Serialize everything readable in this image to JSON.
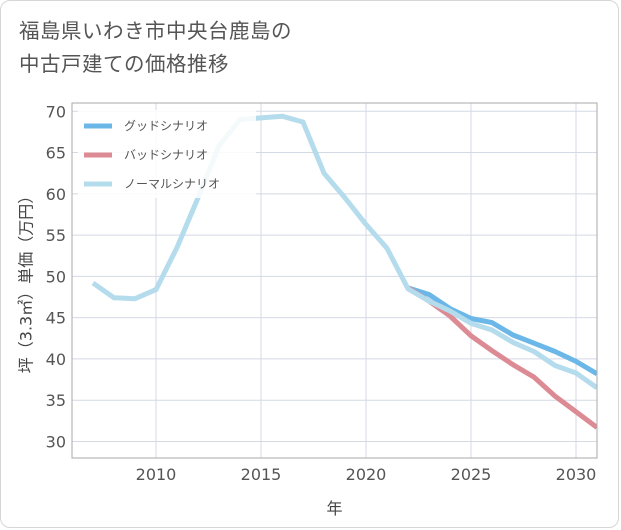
{
  "title": "福島県いわき市中央台鹿島の\n中古戸建ての価格推移",
  "colors": {
    "good": "#6bb8e8",
    "bad": "#dc8a93",
    "normal": "#b5dcec",
    "grid": "#d4d9e4",
    "plot_border": "#aaaaaa"
  },
  "chart_data": {
    "type": "line",
    "title": "福島県いわき市中央台鹿島の\n中古戸建ての価格推移",
    "xlabel": "年",
    "ylabel": "坪（3.3㎡）単価（万円）",
    "xlim": [
      2006,
      2031
    ],
    "ylim": [
      28,
      71
    ],
    "x_ticks": [
      2010,
      2015,
      2020,
      2025,
      2030
    ],
    "y_ticks": [
      30,
      35,
      40,
      45,
      50,
      55,
      60,
      65,
      70
    ],
    "grid": true,
    "legend_position": "top-left",
    "series": [
      {
        "name": "グッドシナリオ",
        "color": "#6bb8e8",
        "x": [
          2022,
          2023,
          2024,
          2025,
          2026,
          2027,
          2028,
          2029,
          2030,
          2031
        ],
        "y": [
          48.6,
          47.8,
          46.1,
          44.9,
          44.4,
          42.9,
          41.9,
          40.9,
          39.7,
          38.2
        ]
      },
      {
        "name": "バッドシナリオ",
        "color": "#dc8a93",
        "x": [
          2022,
          2023,
          2024,
          2025,
          2026,
          2027,
          2028,
          2029,
          2030,
          2031
        ],
        "y": [
          48.6,
          47.0,
          45.2,
          42.8,
          41.0,
          39.3,
          37.8,
          35.5,
          33.6,
          31.7
        ]
      },
      {
        "name": "ノーマルシナリオ",
        "color": "#b5dcec",
        "x": [
          2007,
          2008,
          2009,
          2010,
          2011,
          2012,
          2013,
          2014,
          2015,
          2016,
          2017,
          2018,
          2019,
          2020,
          2021,
          2022,
          2023,
          2024,
          2025,
          2026,
          2027,
          2028,
          2029,
          2030,
          2031
        ],
        "y": [
          49.2,
          47.4,
          47.3,
          48.4,
          53.5,
          59.5,
          65.8,
          69.0,
          69.2,
          69.4,
          68.7,
          62.5,
          59.5,
          56.3,
          53.4,
          48.5,
          47.0,
          45.8,
          44.3,
          43.5,
          42.0,
          40.9,
          39.2,
          38.3,
          36.5
        ]
      }
    ]
  }
}
